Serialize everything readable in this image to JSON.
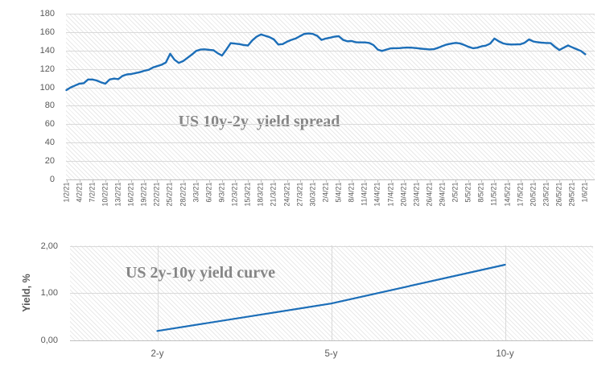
{
  "colors": {
    "series_line": "#1c6eb8",
    "gridline": "#d9d9d9",
    "axis_line": "#c0c0c0",
    "tickmark": "#bfbfbf",
    "tick_text": "#595959",
    "title_text": "#868686"
  },
  "chart_data": [
    {
      "type": "line",
      "title": "US 10y-2y  yield spread",
      "xlabel": "",
      "ylabel": "",
      "ylim": [
        0,
        180
      ],
      "yticks": [
        0,
        20,
        40,
        60,
        80,
        100,
        120,
        140,
        160,
        180
      ],
      "grid": "horizontal",
      "legend": "none",
      "x_labels": [
        "1/2/21",
        "4/2/21",
        "7/2/21",
        "10/2/21",
        "13/2/21",
        "16/2/21",
        "19/2/21",
        "22/2/21",
        "25/2/21",
        "28/2/21",
        "3/3/21",
        "6/3/21",
        "9/3/21",
        "12/3/21",
        "15/3/21",
        "18/3/21",
        "21/3/21",
        "24/3/21",
        "27/3/21",
        "30/3/21",
        "2/4/21",
        "5/4/21",
        "8/4/21",
        "11/4/21",
        "14/4/21",
        "17/4/21",
        "20/4/21",
        "23/4/21",
        "26/4/21",
        "29/4/21",
        "2/5/21",
        "5/5/21",
        "8/5/21",
        "11/5/21",
        "14/5/21",
        "17/5/21",
        "20/5/21",
        "23/5/21",
        "26/5/21",
        "29/5/21",
        "1/6/21"
      ],
      "values": [
        97,
        100,
        102,
        104,
        104.5,
        108.5,
        108.5,
        107.5,
        105.5,
        104,
        108.5,
        109.5,
        109,
        112.5,
        114,
        114.5,
        115.5,
        116.5,
        118,
        119,
        121.5,
        123,
        124.5,
        127,
        136.5,
        130,
        126.5,
        128.5,
        132,
        135.5,
        139.5,
        141,
        141.3,
        140.8,
        140.3,
        137,
        134.5,
        141,
        148,
        147.5,
        147,
        146,
        145.5,
        151,
        155,
        157.5,
        156,
        154.5,
        152,
        146.5,
        147,
        149.5,
        151.5,
        153,
        155.5,
        158,
        158.5,
        158,
        156,
        151.5,
        153,
        154,
        155,
        155.5,
        151.5,
        150,
        150.3,
        148.9,
        148.8,
        148.8,
        148.3,
        146,
        141,
        139.5,
        141,
        142.3,
        142.5,
        142.6,
        143,
        143.2,
        143,
        142.6,
        142,
        141.6,
        141.2,
        141.5,
        143,
        145,
        146.5,
        147.5,
        148.3,
        147.8,
        146,
        144,
        142.5,
        143,
        144.5,
        145.3,
        147.5,
        153,
        150,
        147.8,
        146.8,
        146.5,
        146.6,
        146.8,
        148.5,
        152,
        149.8,
        149,
        148.5,
        148.2,
        148,
        144,
        140.5,
        143,
        145.5,
        143.5,
        141.5,
        139.5,
        136
      ]
    },
    {
      "type": "line",
      "title": "US 2y-10y yield curve",
      "xlabel": "",
      "ylabel": "Yield, %",
      "ylim": [
        0,
        2
      ],
      "yticks": [
        0,
        1,
        2
      ],
      "ytick_labels": [
        "0,00",
        "1,00",
        "2,00"
      ],
      "grid": "both",
      "legend": "none",
      "categories": [
        "2-y",
        "5-y",
        "10-y"
      ],
      "values": [
        0.2,
        0.78,
        1.6
      ]
    }
  ]
}
